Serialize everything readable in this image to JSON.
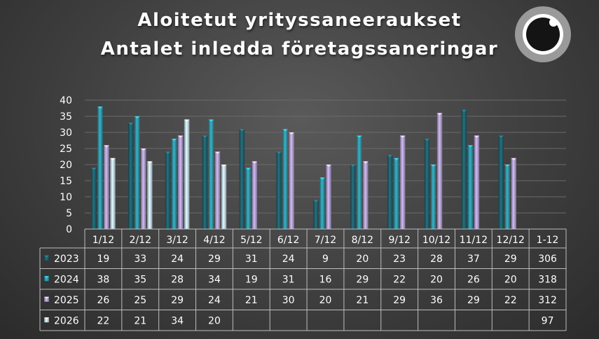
{
  "title_line1": "Aloitetut yrityssaneeraukset",
  "title_line2": "Antalet inledda företagssaneringar",
  "chart_data": {
    "type": "bar",
    "title": "Aloitetut yrityssaneeraukset / Antalet inledda företagssaneringar",
    "categories": [
      "1/12",
      "2/12",
      "3/12",
      "4/12",
      "5/12",
      "6/12",
      "7/12",
      "8/12",
      "9/12",
      "10/12",
      "11/12",
      "12/12"
    ],
    "total_label": "1-12",
    "ylim": [
      0,
      40
    ],
    "yticks": [
      0,
      5,
      10,
      15,
      20,
      25,
      30,
      35,
      40
    ],
    "grid": true,
    "series": [
      {
        "name": "2023",
        "color": "#1f5a66",
        "values": [
          19,
          33,
          24,
          29,
          31,
          24,
          9,
          20,
          23,
          28,
          37,
          29
        ],
        "total": 306
      },
      {
        "name": "2024",
        "color": "#2e8f9e",
        "values": [
          38,
          35,
          28,
          34,
          19,
          31,
          16,
          29,
          22,
          20,
          26,
          20
        ],
        "total": 318
      },
      {
        "name": "2025",
        "color": "#a796c4",
        "values": [
          26,
          25,
          29,
          24,
          21,
          30,
          20,
          21,
          29,
          36,
          29,
          22
        ],
        "total": 312
      },
      {
        "name": "2026",
        "color": "#b6cbe0",
        "values": [
          22,
          21,
          34,
          20,
          null,
          null,
          null,
          null,
          null,
          null,
          null,
          null
        ],
        "total": 97
      }
    ]
  }
}
